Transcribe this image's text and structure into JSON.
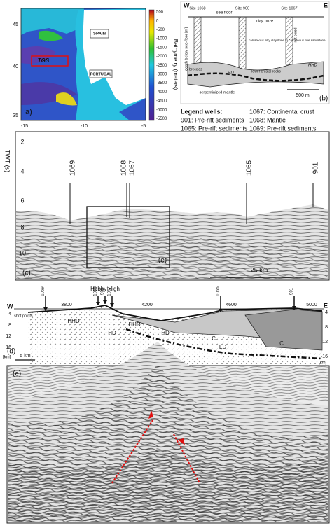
{
  "panel_a": {
    "label": "a)",
    "lat_ticks": [
      "45",
      "40",
      "35"
    ],
    "lon_ticks": [
      "-15",
      "-10",
      "-5"
    ],
    "places": [
      "SPAIN",
      "PORTUGAL",
      "TGS"
    ],
    "colorbar_label": "Bathymetry (meters)",
    "colorbar_ticks": [
      "500",
      "0",
      "-500",
      "-1000",
      "-1500",
      "-2000",
      "-2500",
      "-3000",
      "-3500",
      "-4000",
      "-4500",
      "-5000",
      "-5500"
    ]
  },
  "panel_b": {
    "label": "(b)",
    "west": "W",
    "east": "E",
    "sites": [
      "Site 1068",
      "Site 900",
      "Site 1067"
    ],
    "sea_floor": "sea floor",
    "axis_label": "depth below sea-floor [m]",
    "units": [
      "clay, ooze",
      "calcareous silty claystone to calcareous fine sandstone",
      "lower crustal rocks",
      "serpentinized mantle",
      "breccias",
      "not cored"
    ],
    "layers": [
      "HHD",
      "HD"
    ],
    "scale": "500 m"
  },
  "legend": {
    "title": "Legend wells:",
    "items": [
      "901: Pre-rift sediments",
      "1065: Pre-rift sediments",
      "1067: Continental crust",
      "1068: Mantle",
      "1069: Pre-rift sediments"
    ]
  },
  "panel_c": {
    "label": "(c)",
    "inset_label": "(e)",
    "axis_label": "TWT (s)",
    "yticks": [
      "2",
      "4",
      "6",
      "8",
      "10"
    ],
    "wells": [
      "1069",
      "1068",
      "1067",
      "1065",
      "901"
    ],
    "scale": "25 km"
  },
  "panel_d": {
    "label": "(d)",
    "west": "W",
    "east": "E",
    "high": "Hobby High",
    "shot_points": "shot points",
    "wells": [
      "1069",
      "1068",
      "900",
      "1067",
      "1065",
      "901"
    ],
    "xticks": [
      "3800",
      "4200",
      "4600",
      "5000"
    ],
    "depth_ticks": [
      "4",
      "8",
      "12",
      "16"
    ],
    "depth_unit": "[km]",
    "layers": [
      "HHD",
      "HHD",
      "HD",
      "HD",
      "C",
      "LD",
      "C"
    ],
    "scale": "5 km"
  },
  "panel_e": {
    "label": "(e)"
  }
}
